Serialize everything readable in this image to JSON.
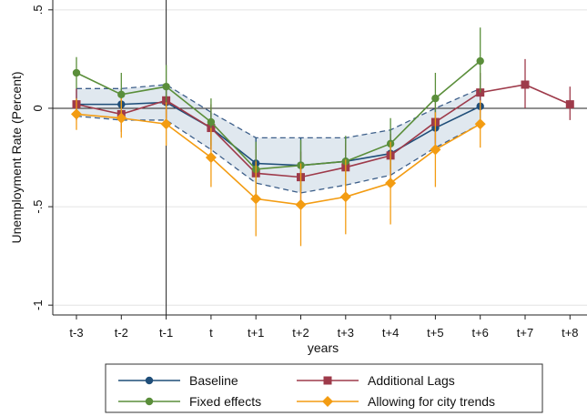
{
  "chart_data": {
    "type": "line",
    "title": "",
    "xlabel": "years",
    "ylabel": "Unemployment Rate (Percent)",
    "categories": [
      "t-3",
      "t-2",
      "t-1",
      "t",
      "t+1",
      "t+2",
      "t+3",
      "t+4",
      "t+5",
      "t+6",
      "t+7",
      "t+8"
    ],
    "yticks": [
      ".5",
      "0",
      "-.5",
      "-1"
    ],
    "ytick_values": [
      0.5,
      0,
      -0.5,
      -1
    ],
    "ylim": [
      -1.05,
      0.55
    ],
    "vertical_reference_line": "t-1",
    "horizontal_reference_line": 0,
    "gridlines": "horizontal",
    "legend_placement": "bottom",
    "confidence_band": {
      "upper": [
        0.1,
        0.1,
        0.12,
        -0.02,
        -0.15,
        -0.15,
        -0.15,
        -0.11,
        0.0,
        0.1
      ],
      "lower": [
        -0.04,
        -0.06,
        -0.06,
        -0.21,
        -0.38,
        -0.43,
        -0.39,
        -0.34,
        -0.2,
        -0.08
      ],
      "color": "#dbe4ec",
      "line_color": "#3d5f8a"
    },
    "series": [
      {
        "name": "Baseline",
        "color": "#1f4e79",
        "marker": "circle",
        "values": [
          0.02,
          0.02,
          0.03,
          -0.1,
          -0.28,
          -0.29,
          -0.27,
          -0.23,
          -0.1,
          0.01,
          null,
          null
        ],
        "ci_low": [
          -0.04,
          -0.06,
          -0.06,
          -0.21,
          -0.38,
          -0.43,
          -0.39,
          -0.34,
          -0.2,
          -0.08,
          null,
          null
        ],
        "ci_high": [
          0.1,
          0.1,
          0.12,
          -0.02,
          -0.15,
          -0.15,
          -0.15,
          -0.11,
          0.0,
          0.1,
          null,
          null
        ]
      },
      {
        "name": "Additional Lags",
        "color": "#9e3a4a",
        "marker": "square",
        "values": [
          0.02,
          -0.03,
          0.04,
          -0.1,
          -0.33,
          -0.35,
          -0.3,
          -0.24,
          -0.07,
          0.08,
          0.12,
          0.02
        ],
        "ci_low": [
          -0.06,
          -0.12,
          -0.05,
          -0.21,
          -0.45,
          -0.48,
          -0.43,
          -0.36,
          -0.18,
          -0.02,
          0.0,
          -0.06
        ],
        "ci_high": [
          0.1,
          0.06,
          0.13,
          0.02,
          -0.2,
          -0.22,
          -0.18,
          -0.13,
          0.04,
          0.18,
          0.25,
          0.11
        ]
      },
      {
        "name": "Fixed effects",
        "color": "#5a8e3a",
        "marker": "circle",
        "values": [
          0.18,
          0.07,
          0.11,
          -0.07,
          -0.31,
          -0.29,
          -0.27,
          -0.18,
          0.05,
          0.24,
          null,
          null
        ],
        "ci_low": [
          0.1,
          -0.04,
          0.0,
          -0.19,
          -0.45,
          -0.42,
          -0.4,
          -0.31,
          -0.08,
          0.08,
          null,
          null
        ],
        "ci_high": [
          0.26,
          0.18,
          0.22,
          0.05,
          -0.17,
          -0.16,
          -0.14,
          -0.05,
          0.18,
          0.41,
          null,
          null
        ]
      },
      {
        "name": "Allowing for city trends",
        "color": "#f39c12",
        "marker": "diamond",
        "values": [
          -0.03,
          -0.05,
          -0.08,
          -0.25,
          -0.46,
          -0.49,
          -0.45,
          -0.38,
          -0.21,
          -0.08,
          null,
          null
        ],
        "ci_low": [
          -0.11,
          -0.15,
          -0.19,
          -0.4,
          -0.65,
          -0.7,
          -0.64,
          -0.59,
          -0.4,
          -0.2,
          null,
          null
        ],
        "ci_high": [
          0.05,
          0.05,
          0.03,
          -0.1,
          -0.27,
          -0.28,
          -0.26,
          -0.17,
          -0.02,
          0.04,
          null,
          null
        ]
      }
    ]
  }
}
